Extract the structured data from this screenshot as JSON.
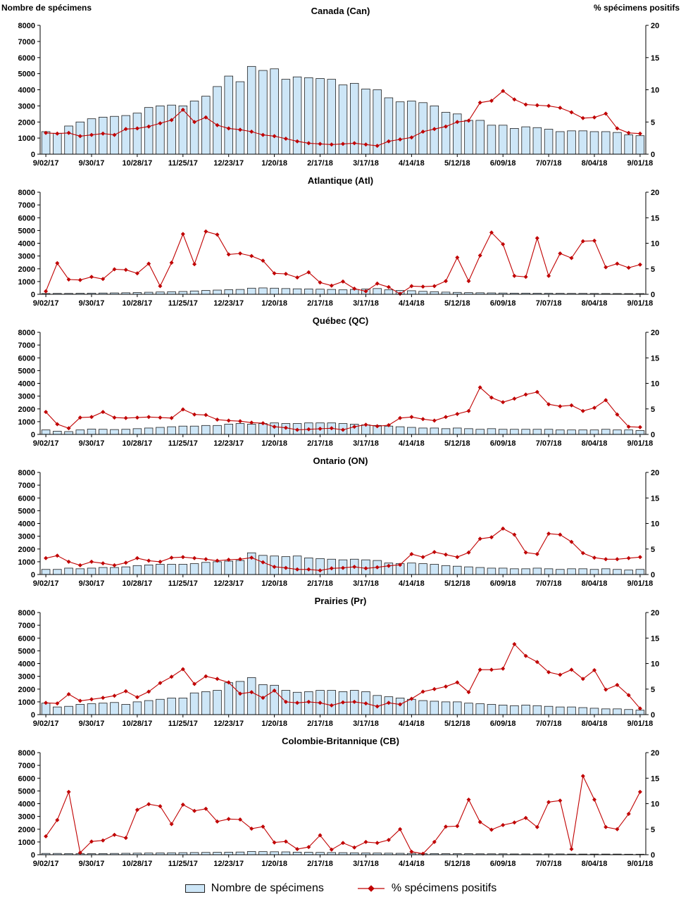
{
  "figure": {
    "background": "#ffffff"
  },
  "legend": {
    "bar_label": "Nombre de spécimens",
    "line_label": "% spécimens positifs"
  },
  "chart_data": {
    "type": "bar",
    "subtype": "combo-bar-line-multipanel",
    "style": {
      "bar_fill": "#CDE6F7",
      "bar_stroke": "#1f1f1f",
      "line_color": "#C00000",
      "background": "#ffffff"
    },
    "x_tick_every": 4,
    "x_tick_labels": [
      "9/02/17",
      "9/30/17",
      "10/28/17",
      "11/25/17",
      "12/23/17",
      "1/20/18",
      "2/17/18",
      "3/17/18",
      "4/14/18",
      "5/12/18",
      "6/09/18",
      "7/07/18",
      "8/04/18"
    ],
    "left_axis": {
      "label": "Nombre de spécimens",
      "min": 0,
      "max": 8000,
      "tick": 1000
    },
    "right_axis": {
      "label": "% spécimens positifs",
      "min": 0,
      "max": 20,
      "tick": 5
    },
    "grid": false,
    "legend_position": "bottom",
    "categories": [
      "9/02/17",
      "9/09/17",
      "9/16/17",
      "9/23/17",
      "9/30/17",
      "10/07/17",
      "10/14/17",
      "10/21/17",
      "10/28/17",
      "11/04/17",
      "11/11/17",
      "11/18/17",
      "11/25/17",
      "12/02/17",
      "12/09/17",
      "12/16/17",
      "12/23/17",
      "12/30/17",
      "1/06/18",
      "1/13/18",
      "1/20/18",
      "1/27/18",
      "2/03/18",
      "2/10/18",
      "2/17/18",
      "2/24/18",
      "3/03/18",
      "3/10/18",
      "3/17/18",
      "3/24/18",
      "3/31/18",
      "4/07/18",
      "4/14/18",
      "4/21/18",
      "4/28/18",
      "5/05/18",
      "5/12/18",
      "5/19/18",
      "5/26/18",
      "6/02/18",
      "6/09/18",
      "6/16/18",
      "6/23/18",
      "6/30/18",
      "7/07/18",
      "7/14/18",
      "7/21/18",
      "7/28/18",
      "8/04/18",
      "8/11/18",
      "8/18/18",
      "8/25/18",
      "9/01/18"
    ],
    "panels": [
      {
        "key": "canada",
        "title": "Canada (Can)",
        "bars": [
          1400,
          1300,
          1750,
          2000,
          2200,
          2300,
          2350,
          2400,
          2550,
          2900,
          3000,
          3050,
          3000,
          3300,
          3600,
          4200,
          4850,
          4500,
          5450,
          5200,
          5300,
          4650,
          4800,
          4750,
          4700,
          4650,
          4300,
          4400,
          4050,
          4000,
          3500,
          3250,
          3300,
          3200,
          3000,
          2600,
          2500,
          2100,
          2100,
          1800,
          1800,
          1600,
          1700,
          1650,
          1550,
          1400,
          1450,
          1450,
          1400,
          1400,
          1350,
          1200,
          1150
        ],
        "line": [
          3.3,
          3.2,
          3.3,
          2.8,
          3.0,
          3.2,
          3.0,
          3.9,
          4.0,
          4.3,
          4.8,
          5.3,
          6.9,
          5.0,
          5.7,
          4.5,
          4.0,
          3.8,
          3.5,
          3.0,
          2.8,
          2.4,
          2.0,
          1.7,
          1.6,
          1.5,
          1.6,
          1.7,
          1.5,
          1.3,
          2.0,
          2.3,
          2.6,
          3.5,
          3.9,
          4.3,
          5.0,
          5.2,
          8.0,
          8.3,
          9.8,
          8.5,
          7.7,
          7.6,
          7.5,
          7.2,
          6.5,
          5.6,
          5.7,
          6.3,
          4.0,
          3.3,
          3.2
        ]
      },
      {
        "key": "atlantique",
        "title": "Atlantique (Atl)",
        "bars": [
          60,
          70,
          70,
          80,
          90,
          100,
          110,
          120,
          140,
          160,
          180,
          200,
          220,
          260,
          300,
          330,
          360,
          380,
          480,
          500,
          480,
          450,
          430,
          420,
          400,
          380,
          350,
          380,
          420,
          450,
          350,
          300,
          280,
          230,
          200,
          170,
          150,
          130,
          120,
          110,
          100,
          90,
          90,
          85,
          80,
          75,
          70,
          70,
          65,
          60,
          60,
          55,
          55
        ],
        "line": [
          0.6,
          6.1,
          2.9,
          2.8,
          3.4,
          3.0,
          4.9,
          4.8,
          4.1,
          6.0,
          1.6,
          6.2,
          11.8,
          5.9,
          12.3,
          11.7,
          7.8,
          8.0,
          7.5,
          6.6,
          4.1,
          4.0,
          3.3,
          4.3,
          2.3,
          1.7,
          2.5,
          1.1,
          0.6,
          2.1,
          1.4,
          0.1,
          1.6,
          1.5,
          1.6,
          2.6,
          7.2,
          2.6,
          7.6,
          12.1,
          9.8,
          3.6,
          3.4,
          11.0,
          3.6,
          8.0,
          7.1,
          10.4,
          10.5,
          5.3,
          6.0,
          5.2,
          5.8
        ]
      },
      {
        "key": "quebec",
        "title": "Québec (QC)",
        "bars": [
          350,
          250,
          220,
          350,
          420,
          400,
          380,
          400,
          450,
          500,
          550,
          600,
          650,
          650,
          700,
          700,
          800,
          850,
          800,
          850,
          900,
          850,
          850,
          900,
          900,
          900,
          850,
          800,
          750,
          700,
          650,
          600,
          550,
          500,
          500,
          450,
          500,
          450,
          400,
          450,
          400,
          400,
          400,
          400,
          400,
          350,
          350,
          350,
          350,
          400,
          350,
          350,
          300
        ],
        "line": [
          4.4,
          2.0,
          1.2,
          3.3,
          3.4,
          4.4,
          3.3,
          3.2,
          3.3,
          3.4,
          3.3,
          3.2,
          4.9,
          3.9,
          3.8,
          2.9,
          2.7,
          2.6,
          2.3,
          2.2,
          1.5,
          1.3,
          0.9,
          1.0,
          1.1,
          1.2,
          0.9,
          1.5,
          1.9,
          1.6,
          1.8,
          3.2,
          3.4,
          3.0,
          2.7,
          3.4,
          4.0,
          4.6,
          9.2,
          7.2,
          6.3,
          7.0,
          7.8,
          8.3,
          5.9,
          5.5,
          5.7,
          4.6,
          5.2,
          6.7,
          3.9,
          1.5,
          1.4
        ]
      },
      {
        "key": "ontario",
        "title": "Ontario (ON)",
        "bars": [
          400,
          400,
          500,
          450,
          500,
          550,
          550,
          600,
          700,
          750,
          800,
          800,
          800,
          850,
          950,
          1000,
          1050,
          1100,
          1700,
          1500,
          1450,
          1400,
          1450,
          1300,
          1250,
          1200,
          1150,
          1200,
          1150,
          1100,
          900,
          850,
          900,
          850,
          800,
          700,
          650,
          600,
          550,
          500,
          500,
          450,
          450,
          500,
          450,
          400,
          450,
          450,
          400,
          450,
          400,
          350,
          400
        ],
        "line": [
          3.2,
          3.7,
          2.5,
          1.8,
          2.5,
          2.2,
          1.8,
          2.3,
          3.2,
          2.7,
          2.5,
          3.3,
          3.4,
          3.2,
          3.0,
          2.7,
          2.9,
          3.0,
          3.3,
          2.4,
          1.5,
          1.3,
          1.0,
          1.0,
          0.8,
          1.2,
          1.3,
          1.5,
          1.2,
          1.4,
          1.7,
          1.9,
          4.0,
          3.4,
          4.4,
          3.9,
          3.4,
          4.3,
          7.0,
          7.3,
          9.0,
          7.8,
          4.3,
          4.0,
          8.0,
          7.8,
          6.4,
          4.2,
          3.3,
          3.0,
          3.0,
          3.2,
          3.4
        ]
      },
      {
        "key": "prairies",
        "title": "Prairies (Pr)",
        "bars": [
          900,
          600,
          650,
          800,
          850,
          900,
          950,
          800,
          1000,
          1100,
          1200,
          1300,
          1300,
          1700,
          1800,
          1900,
          2500,
          2600,
          2900,
          2350,
          2300,
          1900,
          1750,
          1800,
          1900,
          1900,
          1800,
          1900,
          1800,
          1500,
          1400,
          1300,
          1200,
          1100,
          1050,
          1000,
          1000,
          900,
          850,
          800,
          750,
          700,
          750,
          700,
          650,
          600,
          600,
          550,
          500,
          450,
          450,
          400,
          350
        ],
        "line": [
          2.3,
          2.2,
          4.0,
          2.7,
          3.0,
          3.3,
          3.7,
          4.6,
          3.4,
          4.5,
          6.2,
          7.4,
          8.9,
          6.0,
          7.5,
          7.0,
          6.3,
          4.1,
          4.4,
          3.3,
          4.7,
          2.5,
          2.3,
          2.5,
          2.3,
          1.8,
          2.4,
          2.5,
          2.2,
          1.6,
          2.3,
          2.0,
          3.1,
          4.5,
          5.0,
          5.5,
          6.3,
          4.4,
          8.8,
          8.8,
          9.0,
          13.8,
          11.5,
          10.3,
          8.3,
          7.8,
          8.8,
          7.0,
          8.7,
          4.9,
          5.8,
          3.8,
          1.2
        ]
      },
      {
        "key": "colombie-britannique",
        "title": "Colombie-Britannique (CB)",
        "bars": [
          100,
          100,
          90,
          80,
          80,
          90,
          100,
          110,
          120,
          130,
          140,
          150,
          160,
          170,
          180,
          190,
          200,
          210,
          250,
          240,
          230,
          220,
          200,
          190,
          180,
          170,
          160,
          150,
          140,
          130,
          120,
          110,
          100,
          90,
          90,
          80,
          80,
          80,
          70,
          70,
          70,
          60,
          60,
          60,
          60,
          60,
          50,
          50,
          50,
          50,
          50,
          40,
          40
        ],
        "line": [
          3.6,
          6.8,
          12.3,
          0.4,
          2.6,
          2.8,
          3.9,
          3.3,
          8.8,
          9.9,
          9.5,
          6.0,
          9.8,
          8.6,
          9.0,
          6.5,
          7.0,
          6.9,
          5.1,
          5.5,
          2.4,
          2.6,
          1.1,
          1.5,
          3.8,
          1.0,
          2.3,
          1.4,
          2.5,
          2.3,
          2.9,
          5.0,
          0.6,
          0.2,
          2.5,
          5.5,
          5.6,
          10.8,
          6.4,
          4.9,
          5.8,
          6.3,
          7.2,
          5.4,
          10.3,
          10.6,
          1.1,
          15.4,
          10.8,
          5.4,
          5.0,
          8.0,
          12.3
        ]
      }
    ]
  }
}
